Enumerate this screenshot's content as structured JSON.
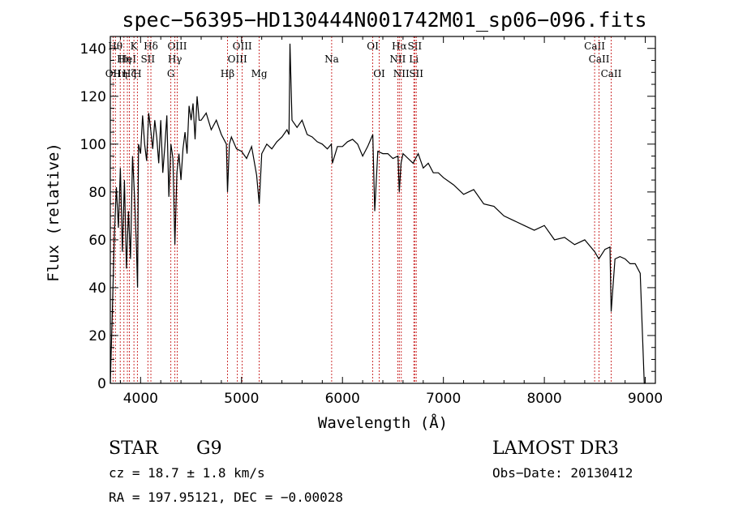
{
  "chart_data": {
    "type": "line",
    "title": "spec−56395−HD130444N001742M01_sp06−096.fits",
    "xlabel": "Wavelength (Å)",
    "ylabel": "Flux (relative)",
    "xlim": [
      3700,
      9100
    ],
    "ylim": [
      0,
      145
    ],
    "xticks": [
      4000,
      5000,
      6000,
      7000,
      8000,
      9000
    ],
    "yticks": [
      0,
      20,
      40,
      60,
      80,
      100,
      120,
      140
    ],
    "series": [
      {
        "name": "spectrum",
        "x": [
          3700,
          3720,
          3740,
          3760,
          3780,
          3800,
          3820,
          3840,
          3860,
          3880,
          3900,
          3920,
          3940,
          3960,
          3970,
          3980,
          4000,
          4020,
          4040,
          4060,
          4080,
          4100,
          4120,
          4140,
          4160,
          4180,
          4200,
          4220,
          4240,
          4260,
          4280,
          4300,
          4320,
          4340,
          4360,
          4380,
          4400,
          4420,
          4440,
          4460,
          4480,
          4500,
          4520,
          4540,
          4560,
          4580,
          4600,
          4650,
          4700,
          4750,
          4800,
          4850,
          4861,
          4880,
          4900,
          4950,
          5000,
          5050,
          5100,
          5150,
          5175,
          5200,
          5250,
          5300,
          5350,
          5400,
          5450,
          5470,
          5480,
          5500,
          5550,
          5600,
          5650,
          5700,
          5750,
          5800,
          5850,
          5890,
          5900,
          5950,
          6000,
          6050,
          6100,
          6150,
          6200,
          6250,
          6280,
          6300,
          6320,
          6350,
          6400,
          6450,
          6500,
          6550,
          6563,
          6580,
          6600,
          6650,
          6700,
          6750,
          6800,
          6850,
          6900,
          6950,
          7000,
          7100,
          7200,
          7300,
          7400,
          7500,
          7600,
          7700,
          7800,
          7900,
          8000,
          8100,
          8200,
          8300,
          8400,
          8500,
          8540,
          8600,
          8650,
          8662,
          8700,
          8750,
          8800,
          8850,
          8900,
          8950,
          8990,
          9000
        ],
        "y": [
          0,
          30,
          62,
          82,
          65,
          90,
          55,
          85,
          48,
          72,
          52,
          95,
          78,
          55,
          40,
          100,
          96,
          112,
          100,
          93,
          113,
          106,
          98,
          110,
          103,
          92,
          110,
          88,
          99,
          112,
          78,
          100,
          94,
          58,
          88,
          96,
          85,
          98,
          105,
          96,
          116,
          110,
          117,
          102,
          120,
          110,
          110,
          113,
          106,
          110,
          104,
          100,
          80,
          100,
          103,
          98,
          97,
          94,
          99,
          87,
          75,
          96,
          100,
          98,
          101,
          103,
          106,
          104,
          142,
          110,
          107,
          110,
          104,
          103,
          101,
          100,
          98,
          100,
          92,
          99,
          99,
          101,
          102,
          100,
          95,
          99,
          102,
          104,
          72,
          97,
          96,
          96,
          94,
          95,
          80,
          92,
          96,
          94,
          92,
          96,
          90,
          92,
          88,
          88,
          86,
          83,
          79,
          81,
          75,
          74,
          70,
          68,
          66,
          64,
          66,
          60,
          61,
          58,
          60,
          55,
          52,
          56,
          57,
          30,
          52,
          53,
          52,
          50,
          50,
          46,
          0,
          0
        ]
      }
    ],
    "annotations": [
      {
        "x": 3727,
        "row": 3,
        "label": "OII"
      },
      {
        "x": 3750,
        "row": 1,
        "label": "Hθ"
      },
      {
        "x": 3798,
        "row": 3,
        "label": "Hη"
      },
      {
        "x": 3835,
        "row": 2,
        "label": "Hη"
      },
      {
        "x": 3869,
        "row": 2,
        "label": "HeI"
      },
      {
        "x": 3889,
        "row": 3,
        "label": "Hζ"
      },
      {
        "x": 3934,
        "row": 1,
        "label": "K"
      },
      {
        "x": 3968,
        "row": 3,
        "label": "H"
      },
      {
        "x": 4072,
        "row": 2,
        "label": "SII"
      },
      {
        "x": 4102,
        "row": 1,
        "label": "Hδ"
      },
      {
        "x": 4300,
        "row": 3,
        "label": "G"
      },
      {
        "x": 4340,
        "row": 2,
        "label": "Hγ"
      },
      {
        "x": 4363,
        "row": 1,
        "label": "OIII"
      },
      {
        "x": 4861,
        "row": 3,
        "label": "Hβ"
      },
      {
        "x": 4959,
        "row": 2,
        "label": "OIII"
      },
      {
        "x": 5007,
        "row": 1,
        "label": "OIII"
      },
      {
        "x": 5175,
        "row": 3,
        "label": "Mg"
      },
      {
        "x": 5893,
        "row": 2,
        "label": "Na"
      },
      {
        "x": 6300,
        "row": 1,
        "label": "OI"
      },
      {
        "x": 6364,
        "row": 3,
        "label": "OI"
      },
      {
        "x": 6548,
        "row": 2,
        "label": "NII"
      },
      {
        "x": 6563,
        "row": 1,
        "label": "Hα"
      },
      {
        "x": 6583,
        "row": 3,
        "label": "NII"
      },
      {
        "x": 6707,
        "row": 2,
        "label": "Li"
      },
      {
        "x": 6716,
        "row": 1,
        "label": "SII"
      },
      {
        "x": 6731,
        "row": 3,
        "label": "SII"
      },
      {
        "x": 8498,
        "row": 1,
        "label": "CaII"
      },
      {
        "x": 8542,
        "row": 2,
        "label": "CaII"
      },
      {
        "x": 8662,
        "row": 3,
        "label": "CaII"
      }
    ]
  },
  "info": {
    "class": "STAR",
    "subclass": "G9",
    "survey": "LAMOST DR3",
    "cz": "cz = 18.7 ± 1.8 km/s",
    "obs_date": "Obs−Date: 20130412",
    "coords": "RA = 197.95121, DEC =  −0.00028"
  },
  "colors": {
    "line_marker": "#c00000",
    "axes": "#000000"
  }
}
